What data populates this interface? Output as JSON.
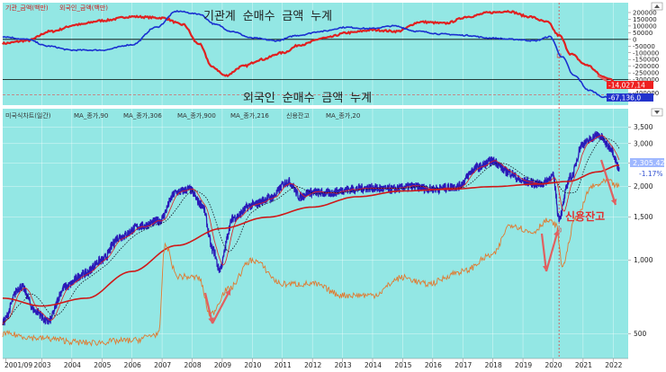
{
  "annotations": {
    "institution_cumulative": "기관계 순매수 금액 누계",
    "foreign_cumulative": "외국인 순매수 금액 누계",
    "margin_balance": "신용잔고"
  },
  "top_legend": [
    {
      "label": "기관_금액(백만)",
      "color": "#e02020"
    },
    {
      "label": "외국인_금액(백만)",
      "color": "#1a2fd0"
    }
  ],
  "bottom_legend": [
    {
      "label": "미국식차트(일간)",
      "color": "#3a3a8a"
    },
    {
      "label": "MA_종가,90",
      "color": "#e02020"
    },
    {
      "label": "MA_종가,306",
      "color": "#d0a020"
    },
    {
      "label": "MA_종가,900",
      "color": "#101060"
    },
    {
      "label": "MA_종가,216",
      "color": "#101010"
    },
    {
      "label": "신용잔고",
      "color": "#e07a30"
    },
    {
      "label": "MA_종가,20",
      "color": "#e02020"
    }
  ],
  "top_badges": {
    "red": "-14,027,14",
    "blue": "-67,136,0"
  },
  "price_badges": {
    "price": "2,305.42",
    "change": "-1.17%"
  },
  "colors": {
    "bg": "#93e7e4",
    "institution": "#e02020",
    "foreign": "#1a2fd0",
    "price": "#2a1ab8",
    "ma_long": "#d01818",
    "ma_short": "#101020",
    "margin": "#e07a30",
    "arrow": "#e06060"
  },
  "chart_data": [
    {
      "type": "line",
      "title": "",
      "x_axis_labels": [
        "2001/09",
        "2003",
        "2004",
        "2005",
        "2006",
        "2007",
        "2008",
        "2009",
        "2010",
        "2011",
        "2012",
        "2013",
        "2014",
        "2015",
        "2016",
        "2017",
        "2018",
        "2019",
        "2020",
        "2021",
        "2022"
      ],
      "y_ticks": [
        "200000",
        "150000",
        "100000",
        "50000",
        "0",
        "-50000",
        "-100000",
        "-150000",
        "-200000",
        "-250000",
        "-300000",
        "-400000"
      ],
      "ylim": [
        -450000,
        220000
      ],
      "series": [
        {
          "name": "기관_금액(백만)",
          "x": [
            2001.7,
            2002.5,
            2003.3,
            2004.2,
            2005.0,
            2006.0,
            2007.0,
            2007.7,
            2008.2,
            2008.7,
            2009.1,
            2009.7,
            2010.3,
            2011.0,
            2011.6,
            2012.4,
            2013.2,
            2014.0,
            2014.8,
            2015.6,
            2016.4,
            2017.2,
            2017.9,
            2018.5,
            2019.2,
            2019.8,
            2020.2,
            2020.6,
            2021.1,
            2021.7,
            2022.2
          ],
          "values": [
            -30000,
            -10000,
            60000,
            110000,
            140000,
            170000,
            160000,
            110000,
            -30000,
            -210000,
            -270000,
            -200000,
            -150000,
            -100000,
            -40000,
            10000,
            50000,
            70000,
            60000,
            130000,
            120000,
            170000,
            200000,
            210000,
            170000,
            130000,
            30000,
            -110000,
            -190000,
            -280000,
            -330000
          ]
        },
        {
          "name": "외국인_금액(백만)",
          "x": [
            2001.7,
            2002.5,
            2003.2,
            2004.0,
            2005.0,
            2006.0,
            2006.8,
            2007.5,
            2008.2,
            2008.8,
            2009.3,
            2010.0,
            2010.8,
            2011.5,
            2012.3,
            2013.1,
            2013.9,
            2014.7,
            2015.5,
            2016.3,
            2017.1,
            2017.9,
            2018.7,
            2019.4,
            2019.9,
            2020.3,
            2020.7,
            2021.2,
            2021.7,
            2022.2
          ],
          "values": [
            20000,
            0,
            -50000,
            -80000,
            -80000,
            -40000,
            90000,
            210000,
            190000,
            110000,
            60000,
            10000,
            -10000,
            30000,
            60000,
            90000,
            80000,
            100000,
            60000,
            40000,
            30000,
            10000,
            0,
            -10000,
            20000,
            -130000,
            -270000,
            -380000,
            -430000,
            -450000
          ]
        }
      ]
    },
    {
      "type": "line",
      "title": "",
      "scale": "log",
      "x_axis_labels": [
        "2001/09",
        "2003",
        "2004",
        "2005",
        "2006",
        "2007",
        "2008",
        "2009",
        "2010",
        "2011",
        "2012",
        "2013",
        "2014",
        "2015",
        "2016",
        "2017",
        "2018",
        "2019",
        "2020",
        "2021",
        "2022"
      ],
      "y_ticks": [
        3500,
        3000,
        2500,
        2000,
        1500,
        1000,
        500
      ],
      "ylim": [
        400,
        3700
      ],
      "series": [
        {
          "name": "미국식차트(일간)",
          "x": [
            2001.7,
            2002.3,
            2002.8,
            2003.2,
            2003.8,
            2004.4,
            2005.0,
            2005.6,
            2006.3,
            2006.9,
            2007.5,
            2007.9,
            2008.3,
            2008.7,
            2008.9,
            2009.4,
            2010.0,
            2010.6,
            2011.2,
            2011.6,
            2011.9,
            2012.5,
            2013.2,
            2013.9,
            2014.6,
            2015.3,
            2016.0,
            2016.8,
            2017.5,
            2018.0,
            2018.5,
            2019.0,
            2019.6,
            2020.0,
            2020.2,
            2020.6,
            2021.0,
            2021.5,
            2021.9,
            2022.2
          ],
          "values": [
            560,
            780,
            620,
            560,
            780,
            880,
            1000,
            1250,
            1380,
            1450,
            1900,
            1950,
            1700,
            1100,
            920,
            1500,
            1680,
            1800,
            2100,
            1820,
            1900,
            1880,
            1950,
            1980,
            1950,
            2000,
            1960,
            2000,
            2400,
            2550,
            2300,
            2100,
            2050,
            2200,
            1500,
            2200,
            3000,
            3250,
            2900,
            2400
          ]
        },
        {
          "name": "MA_종가,900",
          "x": [
            2001.7,
            2003.0,
            2004.5,
            2006.0,
            2007.5,
            2009.0,
            2010.5,
            2012.0,
            2013.5,
            2015.0,
            2016.5,
            2018.0,
            2019.5,
            2020.5,
            2021.5,
            2022.2
          ],
          "values": [
            700,
            650,
            700,
            900,
            1150,
            1350,
            1500,
            1650,
            1820,
            1920,
            1950,
            2000,
            2050,
            2100,
            2300,
            2450
          ]
        },
        {
          "name": "신용잔고",
          "x": [
            2001.7,
            2003.0,
            2004.5,
            2006.0,
            2006.9,
            2007.1,
            2007.5,
            2008.2,
            2008.6,
            2009.2,
            2010.0,
            2011.0,
            2012.0,
            2013.0,
            2014.0,
            2015.0,
            2015.8,
            2017.0,
            2018.0,
            2018.6,
            2019.3,
            2019.8,
            2020.1,
            2020.3,
            2020.8,
            2021.3,
            2021.8,
            2022.2
          ],
          "values": [
            500,
            480,
            460,
            470,
            500,
            1150,
            860,
            850,
            600,
            760,
            1000,
            800,
            800,
            720,
            720,
            850,
            800,
            900,
            1050,
            1400,
            1300,
            1450,
            1400,
            950,
            1500,
            2000,
            2100,
            2000
          ]
        }
      ]
    }
  ]
}
